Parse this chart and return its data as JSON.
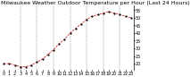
{
  "title": "Milwaukee Weather Outdoor Temperature per Hour (Last 24 Hours)",
  "x_values": [
    0,
    1,
    2,
    3,
    4,
    5,
    6,
    7,
    8,
    9,
    10,
    11,
    12,
    13,
    14,
    15,
    16,
    17,
    18,
    19,
    20,
    21,
    22,
    23
  ],
  "y_values": [
    20,
    20,
    19,
    18,
    18,
    19,
    21,
    23,
    26,
    29,
    33,
    36,
    40,
    43,
    46,
    49,
    51,
    52,
    53,
    54,
    53,
    52,
    51,
    50
  ],
  "ylim": [
    16,
    58
  ],
  "ytick_positions": [
    20,
    25,
    30,
    35,
    40,
    45,
    50,
    55
  ],
  "ytick_labels": [
    "20",
    "25",
    "30",
    "35",
    "40",
    "45",
    "50",
    "55"
  ],
  "xtick_positions": [
    0,
    1,
    2,
    3,
    4,
    5,
    6,
    7,
    8,
    9,
    10,
    11,
    12,
    13,
    14,
    15,
    16,
    17,
    18,
    19,
    20,
    21,
    22,
    23
  ],
  "xtick_labels": [
    "0",
    "1",
    "2",
    "3",
    "4",
    "5",
    "6",
    "7",
    "8",
    "9",
    "10",
    "11",
    "12",
    "13",
    "14",
    "15",
    "16",
    "17",
    "18",
    "19",
    "20",
    "21",
    "22",
    "23"
  ],
  "line_color": "#cc0000",
  "marker_color": "#000000",
  "bg_color": "#ffffff",
  "grid_color": "#888888",
  "title_fontsize": 4.5,
  "tick_fontsize": 3.5,
  "vgrid_positions": [
    3,
    6,
    9,
    12,
    15,
    18,
    21
  ]
}
